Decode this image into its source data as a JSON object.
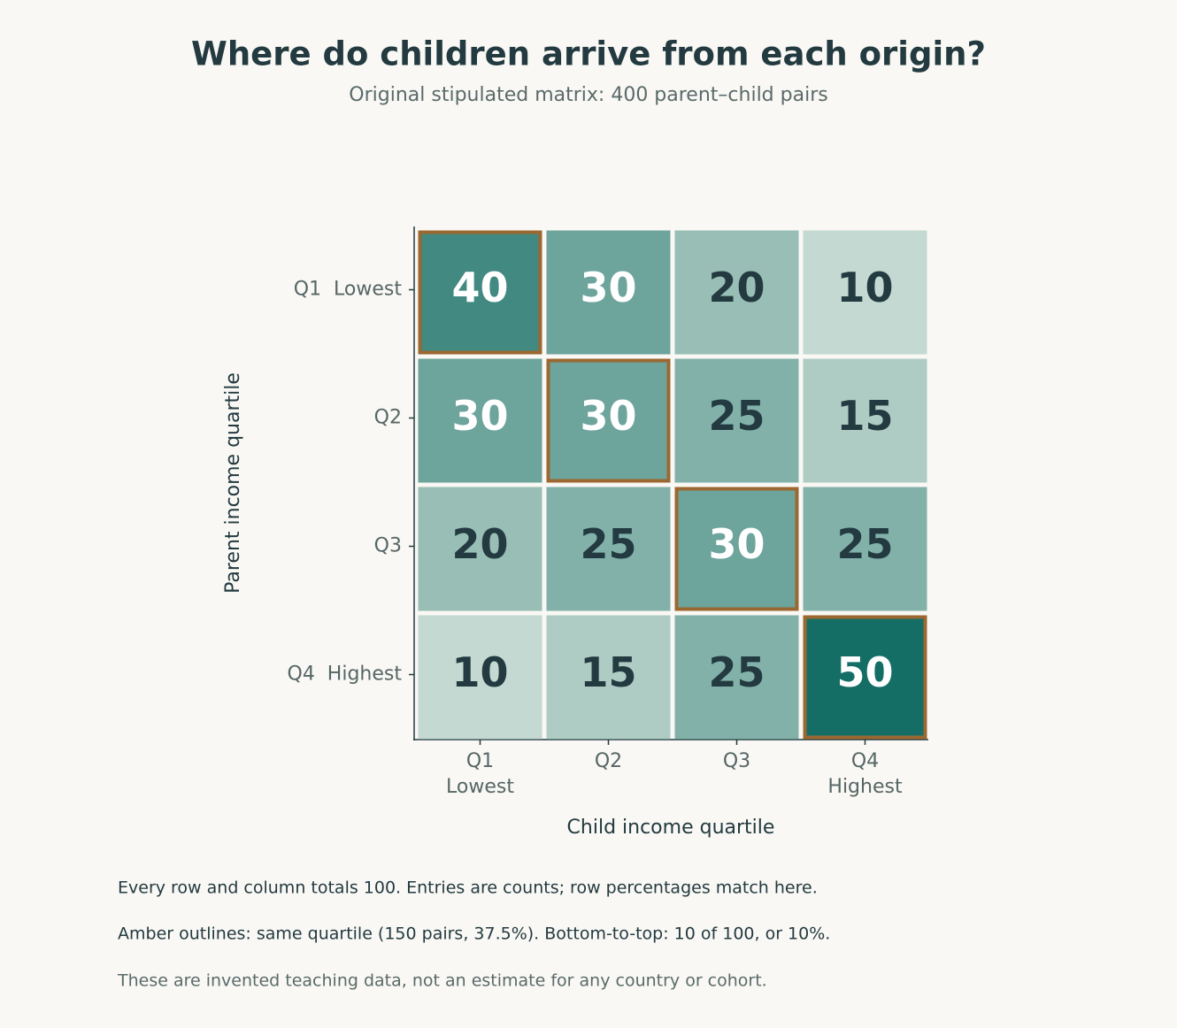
{
  "chart_data": {
    "type": "heatmap",
    "title": "Where do children arrive from each origin?",
    "subtitle": "Original stipulated matrix: 400 parent–child pairs",
    "x_label": "Child income quartile",
    "y_label": "Parent income quartile",
    "x_categories": [
      [
        "Q1",
        "Lowest"
      ],
      [
        "Q2"
      ],
      [
        "Q3"
      ],
      [
        "Q4",
        "Highest"
      ]
    ],
    "y_categories": [
      "Q1  Lowest",
      "Q2",
      "Q3",
      "Q4  Highest"
    ],
    "values": [
      [
        40,
        30,
        20,
        10
      ],
      [
        30,
        30,
        25,
        15
      ],
      [
        20,
        25,
        30,
        25
      ],
      [
        10,
        15,
        25,
        50
      ]
    ],
    "colormap": [
      "#c4d9d1",
      "#156e66"
    ],
    "clim": [
      10,
      50
    ],
    "highlight_diagonal": true,
    "highlight_color": "#9a6830",
    "notes": [
      "Every row and column totals 100. Entries are counts; row percentages match here.",
      "Amber outlines: same quartile (150 pairs, 37.5%). Bottom-to-top: 10 of 100, or 10%.",
      "These are invented teaching data, not an estimate for any country or cohort."
    ]
  }
}
